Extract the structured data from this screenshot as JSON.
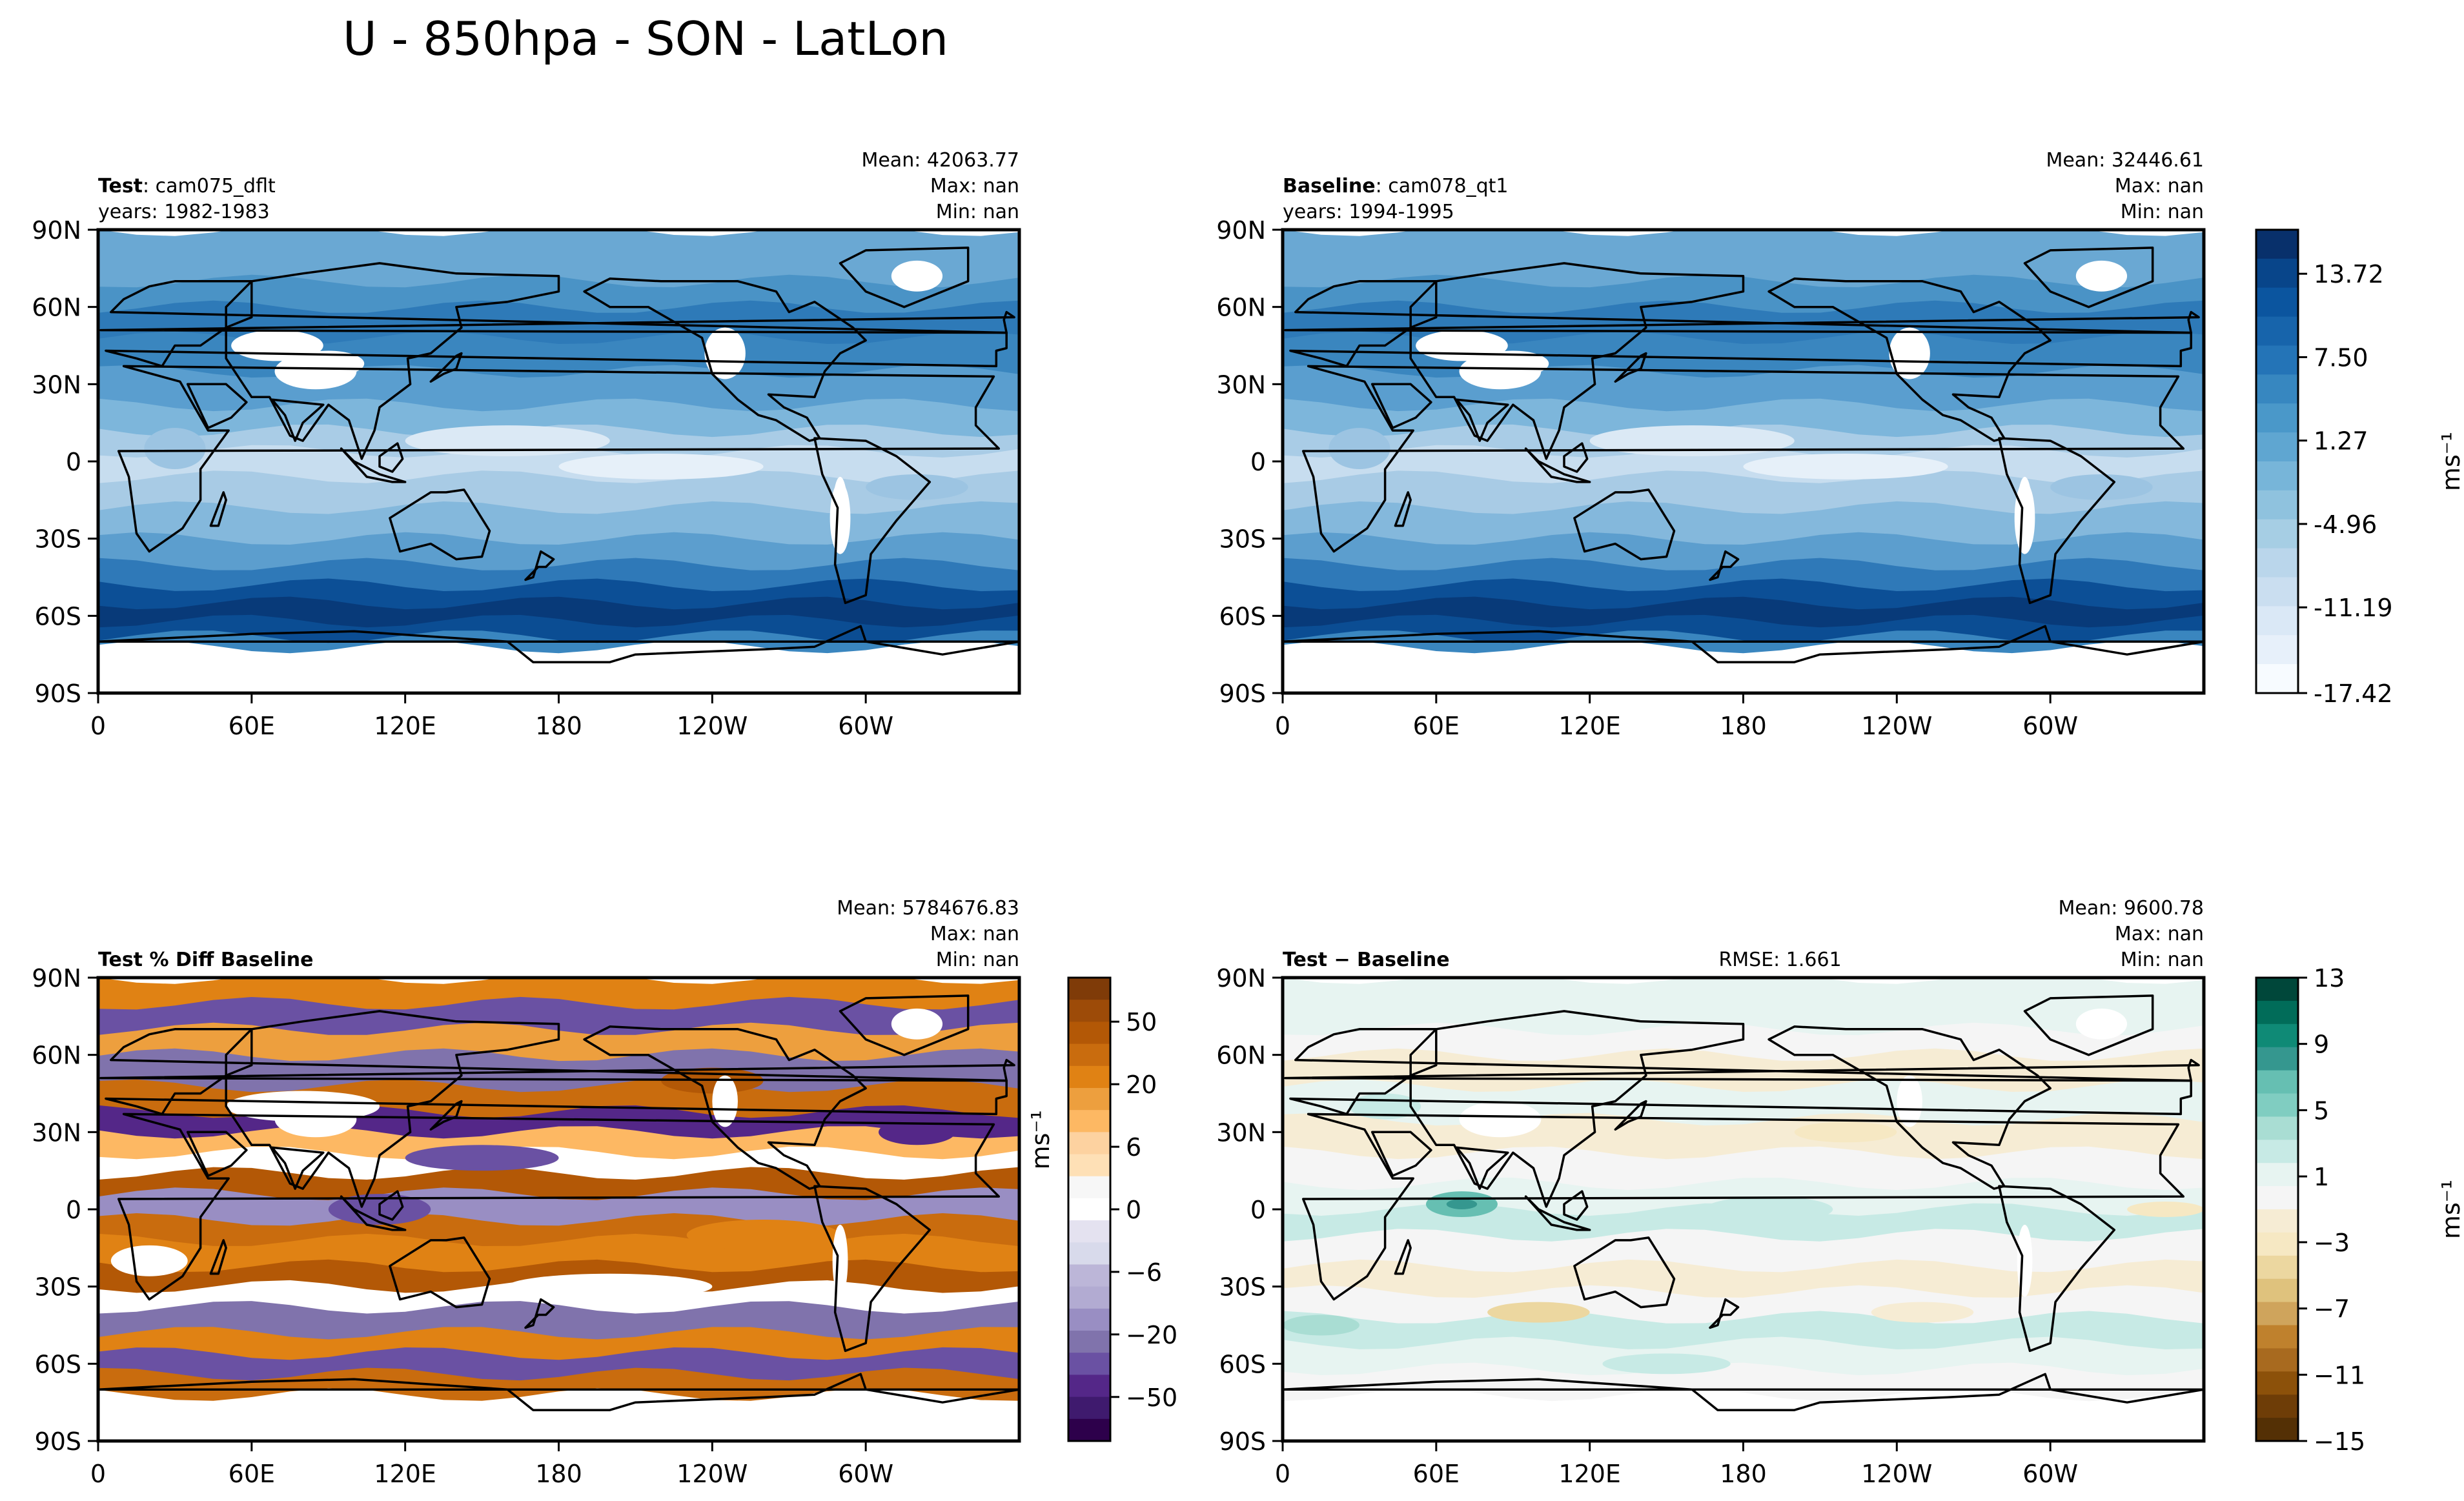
{
  "figure": {
    "title": "U - 850hpa - SON - LatLon"
  },
  "panels": [
    {
      "id": "test",
      "label_bold": "Test",
      "label_rest": ": cam075_dflt",
      "years": "years: 1982-1983",
      "stats": [
        "Mean: 42063.77",
        "Max:   nan",
        "Min:   nan"
      ],
      "rmse": "",
      "colormap": "blues"
    },
    {
      "id": "baseline",
      "label_bold": "Baseline",
      "label_rest": ": cam078_qt1",
      "years": "years: 1994-1995",
      "stats": [
        "Mean: 32446.61",
        "Max:   nan",
        "Min:   nan"
      ],
      "rmse": "",
      "colormap": "blues"
    },
    {
      "id": "pctdiff",
      "label_bold": "Test % Diff Baseline",
      "label_rest": "",
      "years": "",
      "stats": [
        "Mean: 5784676.83",
        "Max:   nan",
        "Min:   nan"
      ],
      "rmse": "",
      "colormap": "puor"
    },
    {
      "id": "diff",
      "label_bold": "Test − Baseline",
      "label_rest": "",
      "years": "",
      "stats": [
        "Mean: 9600.78",
        "Max:   nan",
        "Min:   nan"
      ],
      "rmse": "RMSE: 1.661",
      "colormap": "brbg"
    }
  ],
  "colorbars": [
    {
      "id": "cbar-blues",
      "unit": "ms⁻¹",
      "ticks": [
        "13.72",
        "7.50",
        "1.27",
        "-4.96",
        "-11.19",
        "-17.42"
      ],
      "colors": [
        "#08306b",
        "#08458a",
        "#0b559f",
        "#1764ab",
        "#2474b7",
        "#3787c0",
        "#4a98c9",
        "#5fa6d1",
        "#77b5d9",
        "#8fc2de",
        "#a6cee4",
        "#bad6eb",
        "#cadef0",
        "#dae8f6",
        "#e7f0fa",
        "#f7fbff"
      ]
    },
    {
      "id": "cbar-puor",
      "unit": "ms⁻¹",
      "ticks": [
        "50",
        "20",
        "6",
        "0",
        "−6",
        "−20",
        "−50"
      ],
      "colors": [
        "#7f3b08",
        "#9d4b08",
        "#b35806",
        "#c96c0e",
        "#e08214",
        "#ed9f3e",
        "#fdb863",
        "#fdd2a0",
        "#fee0b6",
        "#f7f7f7",
        "#ffffff",
        "#e4e2f0",
        "#d8daeb",
        "#bcb6d8",
        "#b2abd2",
        "#998ec3",
        "#8073ac",
        "#6a51a3",
        "#542788",
        "#3f1a6e",
        "#2d004b"
      ]
    },
    {
      "id": "cbar-brbg",
      "unit": "ms⁻¹",
      "ticks": [
        "13",
        "9",
        "5",
        "1",
        "−3",
        "−7",
        "−11",
        "−15"
      ],
      "colors": [
        "#00473a",
        "#016c59",
        "#0f8a76",
        "#35978f",
        "#66bfb2",
        "#80cdc1",
        "#a9ddd3",
        "#c7eae5",
        "#e7f4f1",
        "#f5f5f5",
        "#f6ecd4",
        "#f6e8c3",
        "#ecd7a0",
        "#dfc27d",
        "#cfa45c",
        "#bf812d",
        "#a86a1f",
        "#8c510a",
        "#6e3d07",
        "#543005"
      ]
    }
  ],
  "axes": {
    "x_ticks": [
      "0",
      "60E",
      "120E",
      "180",
      "120W",
      "60W"
    ],
    "y_ticks": [
      "90N",
      "60N",
      "30N",
      "0",
      "30S",
      "60S",
      "90S"
    ]
  }
}
